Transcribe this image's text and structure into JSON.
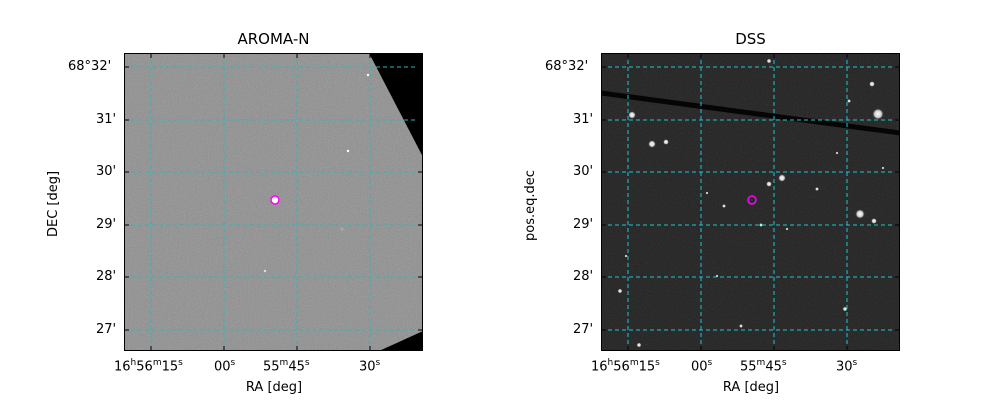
{
  "panels": [
    {
      "title": "AROMA-N",
      "xlabel": "RA [deg]",
      "ylabel": "DEC [deg]",
      "background_color": "#8e8e8e",
      "grid_color": "#35b5b5",
      "marker_color": "#ff00ff",
      "marker_icon": "target-circle-icon"
    },
    {
      "title": "DSS",
      "xlabel": "RA [deg]",
      "ylabel": "pos.eq.dec",
      "background_color": "#1e1e1e",
      "grid_color": "#19c9d2",
      "marker_color": "#ff00ff",
      "marker_icon": "target-circle-icon"
    }
  ],
  "ra_ticks": {
    "t1": {
      "h": "16",
      "hs": "h",
      "m": "56",
      "ms": "m",
      "s": "15",
      "ss": "s"
    },
    "t2": {
      "s": "00",
      "ss": "s"
    },
    "t3": {
      "m": "55",
      "ms": "m",
      "s": "45",
      "ss": "s"
    },
    "t4": {
      "s": "30",
      "ss": "s"
    }
  },
  "dec_ticks": [
    "68°32'",
    "31'",
    "30'",
    "29'",
    "28'",
    "27'"
  ]
}
